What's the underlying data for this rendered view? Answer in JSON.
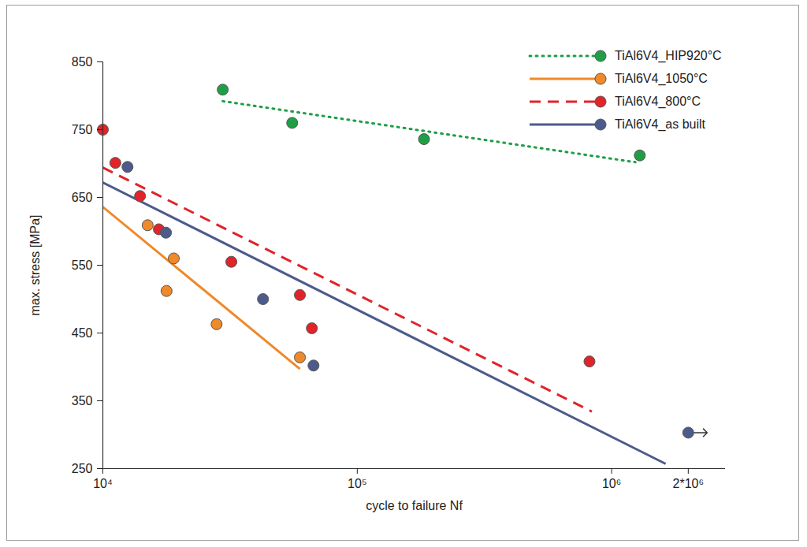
{
  "chart_data": {
    "type": "scatter",
    "xlabel": "cycle to failure Nf",
    "ylabel": "max. stress [MPa]",
    "log": "x",
    "grid": false,
    "legend": "top-right",
    "xlim": [
      10000,
      2800000
    ],
    "ylim": [
      250,
      850
    ],
    "xticks": [
      {
        "value": 10000,
        "label": "10⁴"
      },
      {
        "value": 100000,
        "label": "10⁵"
      },
      {
        "value": 1000000,
        "label": "10⁶"
      },
      {
        "value": 2000000,
        "label": "2*10⁶"
      }
    ],
    "yticks": [
      250,
      350,
      450,
      550,
      650,
      750,
      850
    ],
    "series": [
      {
        "name": "TiAl6V4_HIP920°C",
        "color": "#1f9e46",
        "marker": "circle",
        "line_style": "dotted",
        "x": [
          29600,
          55500,
          183000,
          1290000
        ],
        "values": [
          809,
          760,
          736,
          712
        ],
        "fit": {
          "x": [
            29600,
            1240000
          ],
          "values": [
            792,
            702
          ]
        }
      },
      {
        "name": "TiAl6V4_1050°C",
        "color": "#f0892a",
        "marker": "circle",
        "line_style": "solid",
        "x": [
          15000,
          19000,
          17800,
          28000,
          59500
        ],
        "values": [
          609,
          560,
          512,
          463,
          414
        ],
        "fit": {
          "x": [
            10000,
            59500
          ],
          "values": [
            636,
            397
          ]
        }
      },
      {
        "name": "TiAl6V4_800°C",
        "color": "#e0242a",
        "marker": "circle",
        "line_style": "dashed",
        "x": [
          10000,
          11200,
          14000,
          16600,
          32000,
          59500,
          66300,
          818000
        ],
        "values": [
          750,
          701,
          652,
          603,
          555,
          506,
          457,
          408
        ],
        "fit": {
          "x": [
            10000,
            836000
          ],
          "values": [
            694,
            334
          ]
        }
      },
      {
        "name": "TiAl6V4_as built",
        "color": "#4d5b8c",
        "marker": "circle",
        "line_style": "solid",
        "x": [
          12500,
          17700,
          42600,
          67300,
          2000000
        ],
        "values": [
          695,
          598,
          500,
          402,
          303
        ],
        "runout": [
          false,
          false,
          false,
          false,
          true
        ],
        "fit": {
          "x": [
            10000,
            1630000
          ],
          "values": [
            672,
            257
          ]
        }
      }
    ]
  }
}
